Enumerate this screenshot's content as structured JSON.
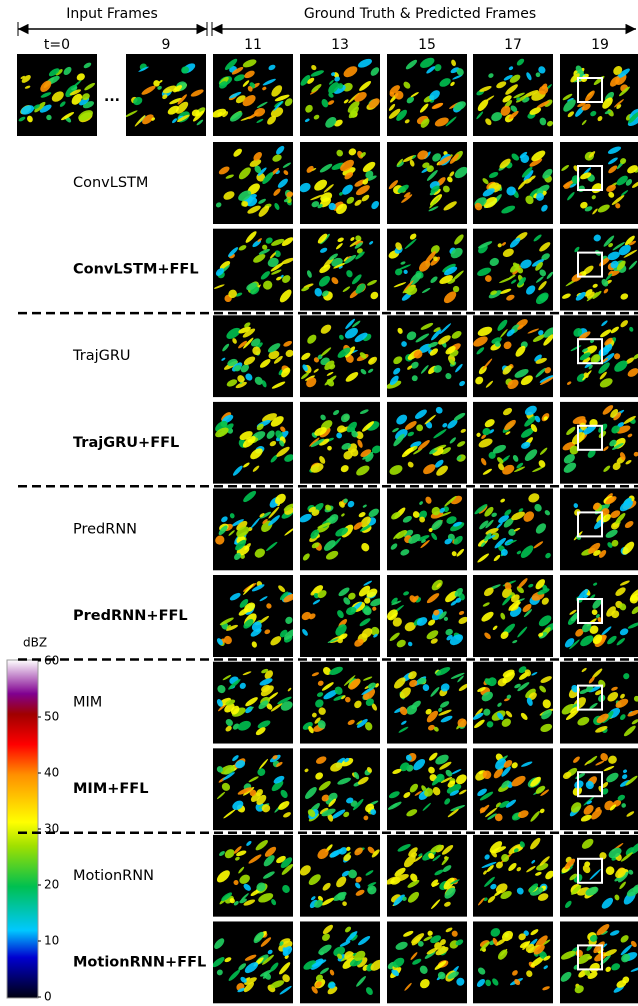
{
  "header": {
    "input_title": "Input Frames",
    "output_title": "Ground Truth & Predicted Frames"
  },
  "frame_labels": {
    "input": [
      "t=0",
      "9"
    ],
    "ellipsis": "...",
    "output": [
      "11",
      "13",
      "15",
      "17",
      "19"
    ]
  },
  "rows": [
    "ConvLSTM",
    "ConvLSTM+FFL",
    "TrajGRU",
    "TrajGRU+FFL",
    "PredRNN",
    "PredRNN+FFL",
    "MIM",
    "MIM+FFL",
    "MotionRNN",
    "MotionRNN+FFL"
  ],
  "colorbar": {
    "label": "dBZ",
    "lim": [
      0,
      60
    ],
    "ticks": [
      0,
      10,
      20,
      30,
      40,
      50,
      60
    ]
  }
}
